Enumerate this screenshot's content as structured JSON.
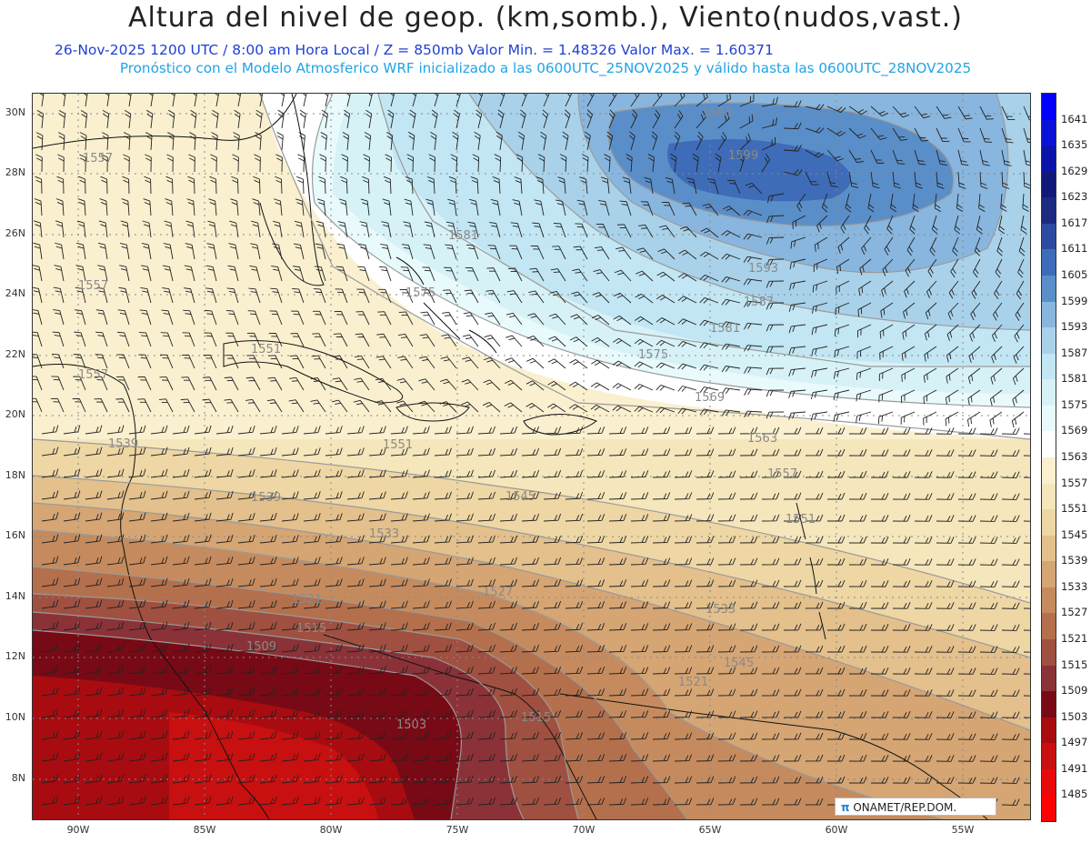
{
  "title": "Altura del nivel de geop. (km,somb.), Viento(nudos,vast.)",
  "subtitle_line1": "26-Nov-2025  1200 UTC / 8:00 am Hora Local / Z = 850mb    Valor Min. = 1.48326  Valor Max. = 1.60371",
  "subtitle_line2": "Pronóstico con el Modelo Atmosferico WRF inicializado a las 0600UTC_25NOV2025 y válido hasta las  0600UTC_28NOV2025",
  "lat_labels": [
    "30N",
    "28N",
    "26N",
    "24N",
    "22N",
    "20N",
    "18N",
    "16N",
    "14N",
    "12N",
    "10N",
    "8N"
  ],
  "lon_labels": [
    "90W",
    "85W",
    "80W",
    "75W",
    "70W",
    "65W",
    "60W",
    "55W"
  ],
  "colorbar": {
    "labels": [
      "1641",
      "1635",
      "1629",
      "1623",
      "1617",
      "1611",
      "1605",
      "1599",
      "1593",
      "1587",
      "1581",
      "1575",
      "1569",
      "1563",
      "1557",
      "1551",
      "1545",
      "1539",
      "1533",
      "1527",
      "1521",
      "1515",
      "1509",
      "1503",
      "1497",
      "1491",
      "1485"
    ],
    "colors": [
      "#0000ff",
      "#0a12d8",
      "#0b14a8",
      "#10187a",
      "#1c2a80",
      "#2c4aa0",
      "#3e6cb8",
      "#5a8ec8",
      "#88b6de",
      "#a9d2ea",
      "#c2e6f3",
      "#d7f2f7",
      "#e9fafc",
      "#ffffff",
      "#faf0cf",
      "#f5e6bb",
      "#eed7a4",
      "#e3c08c",
      "#d5a574",
      "#c58b5e",
      "#b4704c",
      "#a05040",
      "#8a3238",
      "#780a16",
      "#a80c10",
      "#c81010",
      "#e80a0a",
      "#ff0000"
    ]
  },
  "contour_labels": [
    "1557",
    "1557",
    "1557",
    "1551",
    "1545",
    "1539",
    "1533",
    "1527",
    "1521",
    "1515",
    "1509",
    "1503",
    "1515",
    "1521",
    "1533",
    "1545",
    "1551",
    "1557",
    "1563",
    "1569",
    "1575",
    "1581",
    "1587",
    "1593",
    "1599",
    "1563",
    "1575",
    "1581",
    "1551",
    "1539"
  ],
  "credit": "ONAMET/REP.DOM.",
  "credit_logo": "π"
}
